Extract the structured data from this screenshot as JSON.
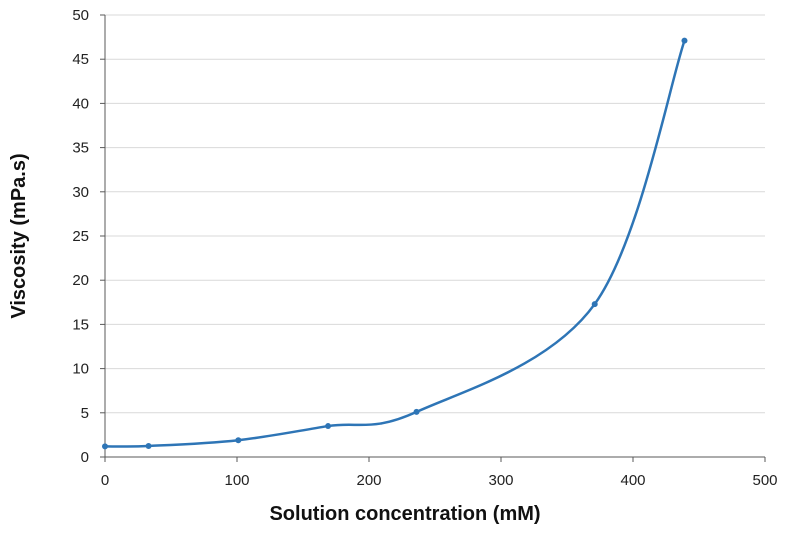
{
  "chart_data": {
    "type": "line",
    "smoothed": true,
    "markers": true,
    "title": "",
    "xlabel": "Solution concentration (mM)",
    "ylabel": "Viscosity (mPa.s)",
    "xlim": [
      0,
      500
    ],
    "ylim": [
      0,
      50
    ],
    "x_ticks": [
      0,
      100,
      200,
      300,
      400,
      500
    ],
    "y_ticks": [
      0,
      5,
      10,
      15,
      20,
      25,
      30,
      35,
      40,
      45,
      50
    ],
    "grid": "horizontal",
    "legend": "none",
    "series": [
      {
        "color": "#2E75B6",
        "x": [
          0,
          33,
          101,
          169,
          236,
          371,
          439
        ],
        "y": [
          1.2,
          1.25,
          1.9,
          3.5,
          5.1,
          17.3,
          47.1
        ]
      }
    ]
  }
}
